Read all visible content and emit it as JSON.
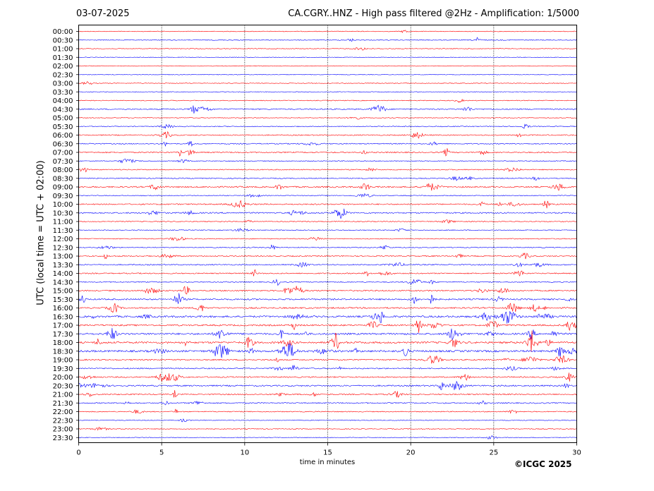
{
  "header": {
    "date": "03-07-2025",
    "station_title": "CA.CGRY..HNZ - High pass filtered @2Hz - Amplification: 1/5000"
  },
  "footer": {
    "copyright": "©ICGC 2025"
  },
  "chart_data": {
    "type": "line",
    "title": "CA.CGRY..HNZ - High pass filtered @2Hz - Amplification: 1/5000",
    "xlabel": "time in minutes",
    "ylabel": "UTC (local time = UTC + 02:00)",
    "xlim": [
      0,
      30
    ],
    "x_ticks": [
      0,
      5,
      10,
      15,
      20,
      25,
      30
    ],
    "vertical_gridlines": [
      5,
      10,
      15,
      20,
      25
    ],
    "row_labels": [
      "00:00",
      "00:30",
      "01:00",
      "01:30",
      "02:00",
      "02:30",
      "03:00",
      "03:30",
      "04:00",
      "04:30",
      "05:00",
      "05:30",
      "06:00",
      "06:30",
      "07:00",
      "07:30",
      "08:00",
      "08:30",
      "09:00",
      "09:30",
      "10:00",
      "10:30",
      "11:00",
      "11:30",
      "12:00",
      "12:30",
      "13:00",
      "13:30",
      "14:00",
      "14:30",
      "15:00",
      "15:30",
      "16:00",
      "16:30",
      "17:00",
      "17:30",
      "18:00",
      "18:30",
      "19:00",
      "19:30",
      "20:00",
      "20:30",
      "21:00",
      "21:30",
      "22:00",
      "22:30",
      "23:00",
      "23:30"
    ],
    "trace_colors": [
      "#ff0000",
      "#0000ff"
    ],
    "noise_level": [
      0.05,
      0.15,
      0.05,
      0.03,
      0.03,
      0.03,
      0.05,
      0.03,
      0.1,
      0.3,
      0.05,
      0.15,
      0.25,
      0.25,
      0.35,
      0.15,
      0.2,
      0.2,
      0.45,
      0.15,
      0.35,
      0.4,
      0.15,
      0.15,
      0.15,
      0.2,
      0.3,
      0.3,
      0.3,
      0.25,
      0.4,
      0.5,
      0.45,
      0.7,
      0.55,
      0.65,
      0.7,
      0.75,
      0.35,
      0.35,
      0.35,
      0.45,
      0.35,
      0.3,
      0.2,
      0.1,
      0.1,
      0.05
    ]
  }
}
